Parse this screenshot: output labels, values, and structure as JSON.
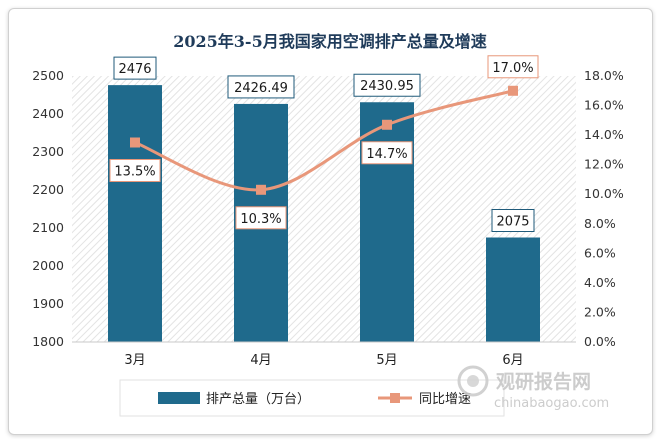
{
  "chart_data": {
    "type": "bar",
    "title": "2025年3-5月我国家用空调排产总量及增速",
    "categories": [
      "3月",
      "4月",
      "5月",
      "6月"
    ],
    "series": [
      {
        "name": "排产总量（万台）",
        "type": "bar",
        "axis": "left",
        "values": [
          2476,
          2426.49,
          2430.95,
          2075
        ],
        "labels": [
          "2476",
          "2426.49",
          "2430.95",
          "2075"
        ],
        "color": "#1f6a8c"
      },
      {
        "name": "同比增速",
        "type": "line",
        "axis": "right",
        "values": [
          13.5,
          10.3,
          14.7,
          17.0
        ],
        "labels": [
          "13.5%",
          "10.3%",
          "14.7%",
          "17.0%"
        ],
        "color": "#e8977a"
      }
    ],
    "y_left": {
      "min": 1800,
      "max": 2500,
      "step": 100,
      "tick_labels": [
        "1800",
        "1900",
        "2000",
        "2100",
        "2200",
        "2300",
        "2400",
        "2500"
      ]
    },
    "y_right": {
      "min": 0,
      "max": 18,
      "step": 2,
      "tick_labels": [
        "0.0%",
        "2.0%",
        "4.0%",
        "6.0%",
        "8.0%",
        "10.0%",
        "12.0%",
        "14.0%",
        "16.0%",
        "18.0%"
      ]
    },
    "grid": false,
    "legend": "bottom"
  },
  "watermark": {
    "brand": "观研报告网",
    "site": "chinabaogao.com"
  }
}
